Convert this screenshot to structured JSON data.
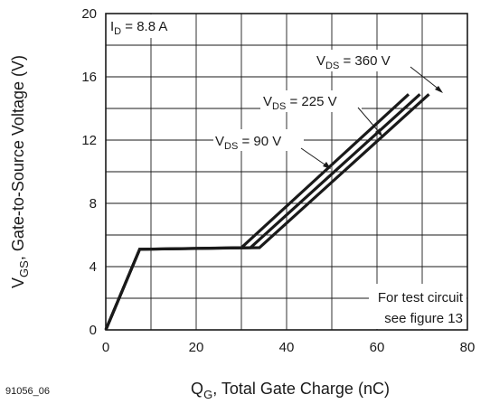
{
  "figure_id": "91056_06",
  "chart_data": {
    "type": "line",
    "xlabel": {
      "main": "Q",
      "sub": "G",
      "rest": ", Total Gate Charge (nC)"
    },
    "ylabel": {
      "main": "V",
      "sub": "GS",
      "rest": ", Gate-to-Source Voltage (V)"
    },
    "xlim": [
      0,
      80
    ],
    "ylim": [
      0,
      20
    ],
    "xticks": [
      0,
      20,
      40,
      60,
      80
    ],
    "yticks": [
      0,
      4,
      8,
      12,
      16,
      20
    ],
    "grid": true,
    "condition": {
      "main": "I",
      "sub": "D",
      "rest": " = 8.8 A"
    },
    "series": [
      {
        "name": {
          "main": "V",
          "sub": "DS",
          "rest": " = 90 V"
        },
        "x": [
          0,
          7.5,
          30,
          67
        ],
        "y": [
          0,
          5.1,
          5.2,
          14.9
        ]
      },
      {
        "name": {
          "main": "V",
          "sub": "DS",
          "rest": " = 225 V"
        },
        "x": [
          0,
          7.5,
          32,
          69.5
        ],
        "y": [
          0,
          5.1,
          5.2,
          14.9
        ]
      },
      {
        "name": {
          "main": "V",
          "sub": "DS",
          "rest": " = 360 V"
        },
        "x": [
          0,
          7.5,
          34,
          71.5
        ],
        "y": [
          0,
          5.1,
          5.2,
          14.9
        ]
      }
    ],
    "annotations": [
      "For test circuit",
      "see figure 13"
    ]
  }
}
